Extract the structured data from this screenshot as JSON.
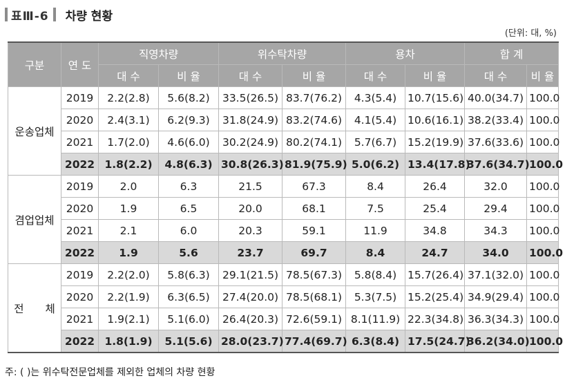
{
  "table_number": "표Ⅲ-6",
  "title": "차량 현황",
  "unit": "(단위: 대, %)",
  "headers": {
    "category": "구분",
    "year": "연 도",
    "groups": [
      "직영차량",
      "위수탁차량",
      "용차",
      "합 계"
    ],
    "sub": [
      "대 수",
      "비 율",
      "대 수",
      "비 율",
      "대 수",
      "비 율",
      "대 수",
      "비 율"
    ]
  },
  "sections": [
    {
      "label": "운송업체",
      "rows": [
        {
          "year": "2019",
          "values": [
            "2.2(2.8)",
            "5.6(8.2)",
            "33.5(26.5)",
            "83.7(76.2)",
            "4.3(5.4)",
            "10.7(15.6)",
            "40.0(34.7)",
            "100.0"
          ]
        },
        {
          "year": "2020",
          "values": [
            "2.4(3.1)",
            "6.2(9.3)",
            "31.8(24.9)",
            "83.2(74.6)",
            "4.1(5.4)",
            "10.6(16.1)",
            "38.2(33.4)",
            "100.0"
          ]
        },
        {
          "year": "2021",
          "values": [
            "1.7(2.0)",
            "4.6(6.0)",
            "30.2(24.9)",
            "80.2(74.1)",
            "5.7(6.7)",
            "15.2(19.9)",
            "37.6(33.6)",
            "100.0"
          ]
        },
        {
          "year": "2022",
          "values": [
            "1.8(2.2)",
            "4.8(6.3)",
            "30.8(26.3)",
            "81.9(75.9)",
            "5.0(6.2)",
            "13.4(17.8)",
            "37.6(34.7)",
            "100.0"
          ]
        }
      ]
    },
    {
      "label": "겸업업체",
      "rows": [
        {
          "year": "2019",
          "values": [
            "2.0",
            "6.3",
            "21.5",
            "67.3",
            "8.4",
            "26.4",
            "32.0",
            "100.0"
          ]
        },
        {
          "year": "2020",
          "values": [
            "1.9",
            "6.5",
            "20.0",
            "68.1",
            "7.5",
            "25.4",
            "29.4",
            "100.0"
          ]
        },
        {
          "year": "2021",
          "values": [
            "2.1",
            "6.0",
            "20.3",
            "59.1",
            "11.9",
            "34.8",
            "34.3",
            "100.0"
          ]
        },
        {
          "year": "2022",
          "values": [
            "1.9",
            "5.6",
            "23.7",
            "69.7",
            "8.4",
            "24.7",
            "34.0",
            "100.0"
          ]
        }
      ]
    },
    {
      "label": "전　　체",
      "rows": [
        {
          "year": "2019",
          "values": [
            "2.2(2.0)",
            "5.8(6.3)",
            "29.1(21.5)",
            "78.5(67.3)",
            "5.8(8.4)",
            "15.7(26.4)",
            "37.1(32.0)",
            "100.0"
          ]
        },
        {
          "year": "2020",
          "values": [
            "2.2(1.9)",
            "6.3(6.5)",
            "27.4(20.0)",
            "78.5(68.1)",
            "5.3(7.5)",
            "15.2(25.4)",
            "34.9(29.4)",
            "100.0"
          ]
        },
        {
          "year": "2021",
          "values": [
            "1.9(2.1)",
            "5.1(6.0)",
            "26.4(20.3)",
            "72.6(59.1)",
            "8.1(11.9)",
            "22.3(34.8)",
            "36.3(34.3)",
            "100.0"
          ]
        },
        {
          "year": "2022",
          "values": [
            "1.8(1.9)",
            "5.1(5.6)",
            "28.0(23.7)",
            "77.4(69.7)",
            "6.3(8.4)",
            "17.5(24.7)",
            "36.2(34.0)",
            "100.0"
          ]
        }
      ]
    }
  ],
  "note": "주: ( )는 위수탁전문업체를 제외한 업체의 차량 현황"
}
